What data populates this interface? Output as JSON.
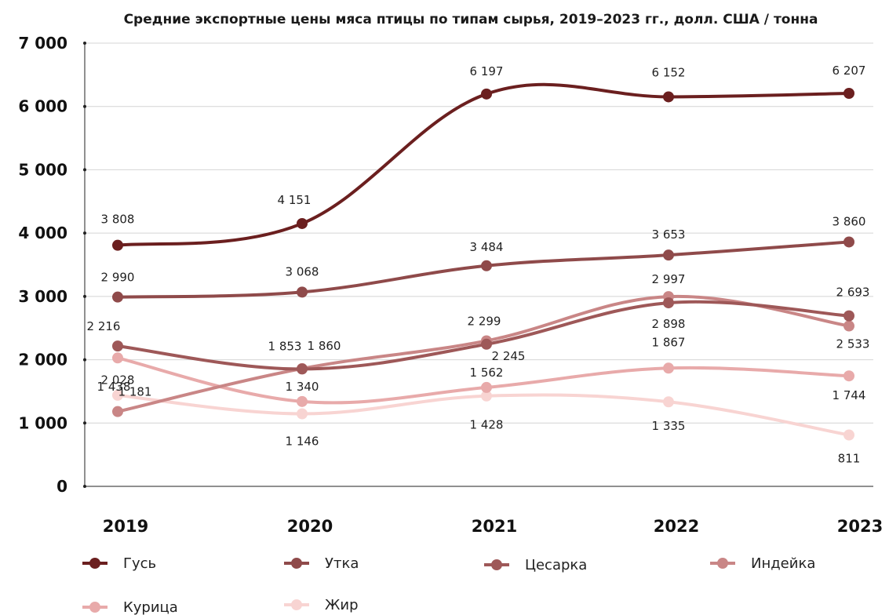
{
  "chart_data": {
    "type": "line",
    "title": "Средние экспортные цены мяса птицы по типам сырья, 2019–2023 гг., долл. США / тонна",
    "xlabel": "",
    "ylabel": "",
    "categories": [
      "2019",
      "2020",
      "2021",
      "2022",
      "2023"
    ],
    "ylim": [
      0,
      7000
    ],
    "yticks": [
      0,
      1000,
      2000,
      3000,
      4000,
      5000,
      6000,
      7000
    ],
    "ytick_labels": [
      "0",
      "1 000",
      "2 000",
      "3 000",
      "4 000",
      "5 000",
      "6 000",
      "7 000"
    ],
    "grid": true,
    "legend_position": "bottom",
    "series": [
      {
        "name": "Гусь",
        "color": "#6b1f1f",
        "values": [
          3808,
          4151,
          6197,
          6152,
          6207
        ],
        "labels": [
          "3 808",
          "4 151",
          "6 197",
          "6 152",
          "6 207"
        ]
      },
      {
        "name": "Утка",
        "color": "#8f4a4a",
        "values": [
          2990,
          3068,
          3484,
          3653,
          3860
        ],
        "labels": [
          "2 990",
          "3 068",
          "3 484",
          "3 653",
          "3 860"
        ]
      },
      {
        "name": "Цесарка",
        "color": "#9e5858",
        "values": [
          2216,
          1853,
          2245,
          2898,
          2693
        ],
        "labels": [
          "2 216",
          "1 853",
          "2 245",
          "2 898",
          "2 693"
        ]
      },
      {
        "name": "Индейка",
        "color": "#c98686",
        "values": [
          1181,
          1860,
          2299,
          2997,
          2533
        ],
        "labels": [
          "1 181",
          "1 860",
          "2 299",
          "2 997",
          "2 533"
        ]
      },
      {
        "name": "Курица",
        "color": "#e8aaaa",
        "values": [
          2028,
          1340,
          1562,
          1867,
          1744
        ],
        "labels": [
          "2 028",
          "1 340",
          "1 562",
          "1 867",
          "1 744"
        ]
      },
      {
        "name": "Жир",
        "color": "#f8d4d2",
        "values": [
          1438,
          1146,
          1428,
          1335,
          811
        ],
        "labels": [
          "1 438",
          "1 146",
          "1 428",
          "1 335",
          "811"
        ]
      }
    ]
  }
}
